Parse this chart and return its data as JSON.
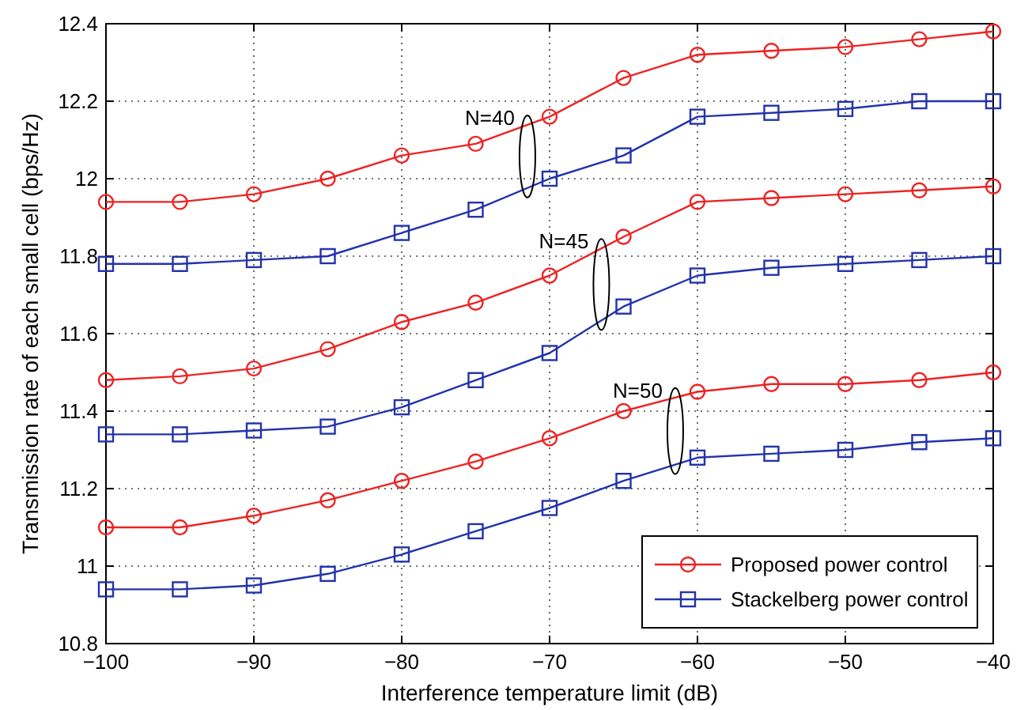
{
  "chart_data": {
    "type": "line",
    "xlabel": "Interference temperature limit (dB)",
    "ylabel": "Transmission rate of each small cell (bps/Hz)",
    "x": [
      -100,
      -95,
      -90,
      -85,
      -80,
      -75,
      -70,
      -65,
      -60,
      -55,
      -50,
      -45,
      -40
    ],
    "series": [
      {
        "name": "Proposed power control",
        "color": "#ee2222",
        "marker": "circle",
        "values": [
          11.94,
          11.94,
          11.96,
          12.0,
          12.06,
          12.09,
          12.16,
          12.26,
          12.32,
          12.33,
          12.34,
          12.36,
          12.38
        ]
      },
      {
        "name": "Stackelberg power control",
        "color": "#2233aa",
        "marker": "square",
        "values": [
          11.78,
          11.78,
          11.79,
          11.8,
          11.86,
          11.92,
          12.0,
          12.06,
          12.16,
          12.17,
          12.18,
          12.2,
          12.2
        ]
      },
      {
        "color": "#ee2222",
        "marker": "circle",
        "values": [
          11.48,
          11.49,
          11.51,
          11.56,
          11.63,
          11.68,
          11.75,
          11.85,
          11.94,
          11.95,
          11.96,
          11.97,
          11.98
        ]
      },
      {
        "color": "#2233aa",
        "marker": "square",
        "values": [
          11.34,
          11.34,
          11.35,
          11.36,
          11.41,
          11.48,
          11.55,
          11.67,
          11.75,
          11.77,
          11.78,
          11.79,
          11.8
        ]
      },
      {
        "color": "#ee2222",
        "marker": "circle",
        "values": [
          11.1,
          11.1,
          11.13,
          11.17,
          11.22,
          11.27,
          11.33,
          11.4,
          11.45,
          11.47,
          11.47,
          11.48,
          11.5
        ]
      },
      {
        "color": "#2233aa",
        "marker": "square",
        "values": [
          10.94,
          10.94,
          10.95,
          10.98,
          11.03,
          11.09,
          11.15,
          11.22,
          11.28,
          11.29,
          11.3,
          11.32,
          11.33
        ]
      }
    ],
    "annotations": [
      "N=40",
      "N=45",
      "N=50"
    ],
    "xlim": [
      -100,
      -40
    ],
    "xticks": [
      -100,
      -90,
      -80,
      -70,
      -60,
      -50,
      -40
    ],
    "ylim": [
      10.8,
      12.4
    ],
    "yticks": [
      10.8,
      11,
      11.2,
      11.4,
      11.6,
      11.8,
      12,
      12.2,
      12.4
    ],
    "grid": true,
    "legend": "bottom right",
    "line_style": "solid"
  }
}
